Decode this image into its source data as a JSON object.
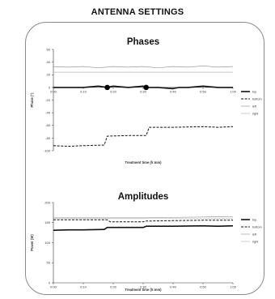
{
  "page": {
    "title": "ANTENNA SETTINGS"
  },
  "chart_data": [
    {
      "type": "line",
      "title": "Phases",
      "xlabel": "Treatment time (h:mm)",
      "ylabel": "Phase (°)",
      "xlim": [
        0,
        60
      ],
      "ylim": [
        -100,
        60
      ],
      "x_ticks": [
        "0:00",
        "0:10",
        "0:20",
        "0:30",
        "0:40",
        "0:50",
        "1:00"
      ],
      "y_ticks": [
        "60",
        "40",
        "20",
        "0",
        "-20",
        "-40",
        "-60",
        "-80",
        "-100"
      ],
      "grid": false,
      "legend": "right",
      "series": [
        {
          "name": "top",
          "style": "solid-thick",
          "color": "#111111",
          "x": [
            0,
            5,
            10,
            15,
            18,
            20,
            25,
            30,
            31,
            35,
            40,
            42,
            45,
            50,
            55,
            60
          ],
          "y": [
            0,
            0,
            0,
            2,
            0,
            2,
            0,
            2,
            0,
            0,
            -2,
            0,
            0,
            2,
            0,
            0
          ]
        },
        {
          "name": "bottom",
          "style": "dashed",
          "color": "#111111",
          "x": [
            0,
            5,
            10,
            17,
            18,
            25,
            31,
            32,
            40,
            50,
            55,
            60
          ],
          "y": [
            -92,
            -93,
            -92,
            -91,
            -77,
            -76,
            -76,
            -63,
            -63,
            -62,
            -63,
            -62
          ]
        },
        {
          "name": "left",
          "style": "solid-thin",
          "color": "#9a9a9a",
          "x": [
            0,
            5,
            10,
            15,
            20,
            25,
            30,
            35,
            40,
            45,
            50,
            55,
            60
          ],
          "y": [
            33,
            32,
            33,
            31,
            33,
            32,
            33,
            31,
            33,
            32,
            34,
            32,
            33
          ]
        },
        {
          "name": "right",
          "style": "solid-thin",
          "color": "#b8b8b8",
          "x": [
            0,
            10,
            20,
            30,
            40,
            50,
            60
          ],
          "y": [
            24,
            24,
            24,
            24,
            24,
            24,
            24
          ]
        }
      ],
      "markers": [
        {
          "x": 18,
          "y": 0
        },
        {
          "x": 31,
          "y": 0
        }
      ],
      "legend_labels": [
        "top",
        "bottom",
        "left",
        "right"
      ]
    },
    {
      "type": "line",
      "title": "Amplitudes",
      "xlabel": "Treatment time (h:mm)",
      "ylabel": "Power (W)",
      "xlim": [
        0,
        60
      ],
      "ylim": [
        0,
        200
      ],
      "x_ticks": [
        "0:00",
        "0:10",
        "0:20",
        "0:30",
        "0:40",
        "0:50",
        "1:00"
      ],
      "y_ticks": [
        "200",
        "150",
        "100",
        "50",
        "0"
      ],
      "grid": false,
      "legend": "right",
      "series": [
        {
          "name": "top",
          "style": "solid-thick",
          "color": "#111111",
          "x": [
            0,
            5,
            10,
            17,
            18,
            25,
            30,
            31,
            40,
            50,
            55,
            60
          ],
          "y": [
            131,
            132,
            132,
            133,
            138,
            138,
            138,
            141,
            141,
            142,
            141,
            142
          ]
        },
        {
          "name": "bottom",
          "style": "dashed",
          "color": "#111111",
          "x": [
            0,
            10,
            18,
            19,
            30,
            31,
            40,
            50,
            60
          ],
          "y": [
            157,
            157,
            157,
            152,
            152,
            154,
            155,
            156,
            156
          ]
        },
        {
          "name": "left",
          "style": "solid-thin",
          "color": "#9a9a9a",
          "x": [
            0,
            10,
            20,
            30,
            40,
            50,
            60
          ],
          "y": [
            162,
            162,
            162,
            162,
            163,
            164,
            165
          ]
        },
        {
          "name": "right",
          "style": "solid-thin",
          "color": "#b8b8b8",
          "x": [
            0,
            10,
            20,
            30,
            40,
            50,
            60
          ],
          "y": [
            160,
            160,
            160,
            160,
            160,
            160,
            160
          ]
        }
      ],
      "legend_labels": [
        "top",
        "bottom",
        "left",
        "right"
      ]
    }
  ]
}
